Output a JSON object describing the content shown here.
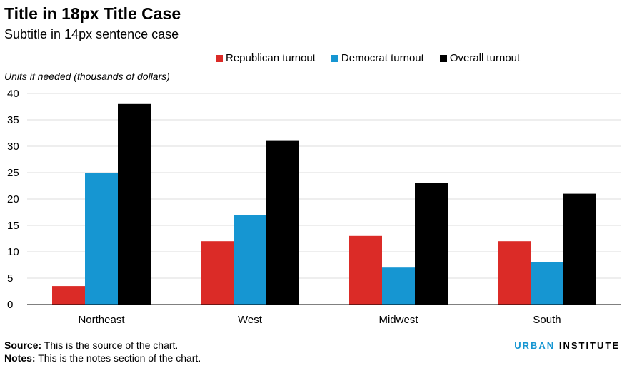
{
  "chart_data": {
    "type": "bar",
    "title": "Title in 18px Title Case",
    "subtitle": "Subtitle in 14px sentence case",
    "ylabel": "Units if needed (thousands of dollars)",
    "categories": [
      "Northeast",
      "West",
      "Midwest",
      "South"
    ],
    "series": [
      {
        "name": "Republican turnout",
        "color": "#db2b27",
        "values": [
          3.5,
          12,
          13,
          12
        ]
      },
      {
        "name": "Democrat turnout",
        "color": "#1696d2",
        "values": [
          25,
          17,
          7,
          8
        ]
      },
      {
        "name": "Overall turnout",
        "color": "#000000",
        "values": [
          38,
          31,
          23,
          21
        ]
      }
    ],
    "ylim": [
      0,
      40
    ],
    "yticks": [
      "0",
      "5",
      "10",
      "15",
      "20",
      "25",
      "30",
      "35",
      "40"
    ],
    "grid": true,
    "legend_position": "top"
  },
  "footer": {
    "source_label": "Source:",
    "source_text": " This is the source of the chart.",
    "notes_label": "Notes:",
    "notes_text": " This is the notes section of the chart.",
    "logo_primary": "URBAN",
    "logo_secondary": "INSTITUTE"
  }
}
